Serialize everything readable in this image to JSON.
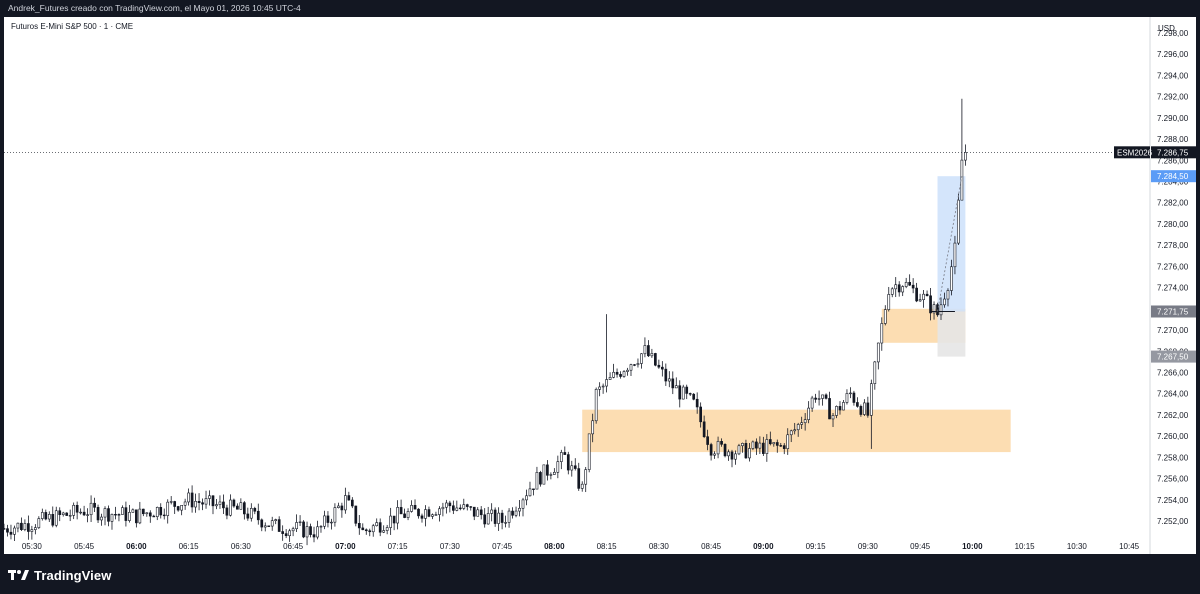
{
  "header": {
    "caption": "Andrek_Futures creado con TradingView.com, el Mayo 01, 2026 10:45 UTC-4"
  },
  "footer": {
    "brand": "TradingView",
    "logo_icon": "tradingview-logo-icon"
  },
  "colors": {
    "background_outer": "#131722",
    "chart_background": "#ffffff",
    "candle": "#131722",
    "demand_zone": "#fbd7a5",
    "long_profit_zone": "#cfe2fb",
    "long_stop_zone": "#e6e6e6",
    "entry_label": "#787b86",
    "target_label": "#5b9cf6",
    "price_label": "#131722"
  },
  "chart_data": {
    "type": "candlestick",
    "title": "Futuros E-Mini S&P 500 · 1 · CME",
    "currency": "USD",
    "symbol_label": "ESM2026",
    "last_price": "7.286,75",
    "target_price_label": "7.284,50",
    "entry_price_label": "7.271,75",
    "stop_price_label": "7.267,50",
    "y_range": [
      7250.5,
      7299.5
    ],
    "y_ticks": [
      "7.252,00",
      "7.254,00",
      "7.256,00",
      "7.258,00",
      "7.260,00",
      "7.262,00",
      "7.264,00",
      "7.266,00",
      "7.268,00",
      "7.270,00",
      "7.272,00",
      "7.274,00",
      "7.276,00",
      "7.278,00",
      "7.280,00",
      "7.282,00",
      "7.284,00",
      "7.286,00",
      "7.288,00",
      "7.290,00",
      "7.292,00",
      "7.294,00",
      "7.296,00",
      "7.298,00"
    ],
    "x_range": [
      "05:22",
      "10:51"
    ],
    "x_ticks": [
      {
        "label": "05:30",
        "bold": false
      },
      {
        "label": "05:45",
        "bold": false
      },
      {
        "label": "06:00",
        "bold": true
      },
      {
        "label": "06:15",
        "bold": false
      },
      {
        "label": "06:30",
        "bold": false
      },
      {
        "label": "06:45",
        "bold": false
      },
      {
        "label": "07:00",
        "bold": true
      },
      {
        "label": "07:15",
        "bold": false
      },
      {
        "label": "07:30",
        "bold": false
      },
      {
        "label": "07:45",
        "bold": false
      },
      {
        "label": "08:00",
        "bold": true
      },
      {
        "label": "08:15",
        "bold": false
      },
      {
        "label": "08:30",
        "bold": false
      },
      {
        "label": "08:45",
        "bold": false
      },
      {
        "label": "09:00",
        "bold": true
      },
      {
        "label": "09:15",
        "bold": false
      },
      {
        "label": "09:30",
        "bold": false
      },
      {
        "label": "09:45",
        "bold": false
      },
      {
        "label": "10:00",
        "bold": true
      },
      {
        "label": "10:15",
        "bold": false
      },
      {
        "label": "10:30",
        "bold": false
      },
      {
        "label": "10:45",
        "bold": false
      }
    ],
    "zones": [
      {
        "type": "demand",
        "from": "08:08",
        "to": "10:11",
        "low": 7258.5,
        "high": 7262.5
      },
      {
        "type": "demand",
        "from": "09:34",
        "to": "09:58",
        "low": 7268.8,
        "high": 7272.0
      },
      {
        "type": "long-position-target",
        "from": "09:50",
        "to": "09:58",
        "low": 7271.75,
        "high": 7284.5
      },
      {
        "type": "long-position-stop",
        "from": "09:50",
        "to": "09:58",
        "low": 7267.5,
        "high": 7271.75
      }
    ],
    "last_price_line": 7286.75,
    "anchor_points": [
      {
        "t": "05:22",
        "p": 7251.3
      },
      {
        "t": "05:30",
        "p": 7251.8
      },
      {
        "t": "05:45",
        "p": 7253.0
      },
      {
        "t": "06:00",
        "p": 7252.5
      },
      {
        "t": "06:15",
        "p": 7254.0
      },
      {
        "t": "06:30",
        "p": 7253.0
      },
      {
        "t": "06:40",
        "p": 7251.5
      },
      {
        "t": "06:52",
        "p": 7251.0
      },
      {
        "t": "07:00",
        "p": 7254.0
      },
      {
        "t": "07:05",
        "p": 7251.0
      },
      {
        "t": "07:15",
        "p": 7252.5
      },
      {
        "t": "07:30",
        "p": 7253.5
      },
      {
        "t": "07:45",
        "p": 7252.0
      },
      {
        "t": "07:55",
        "p": 7256.0
      },
      {
        "t": "08:03",
        "p": 7258.0
      },
      {
        "t": "08:08",
        "p": 7255.0
      },
      {
        "t": "08:12",
        "p": 7264.0
      },
      {
        "t": "08:20",
        "p": 7266.5
      },
      {
        "t": "08:26",
        "p": 7268.0
      },
      {
        "t": "08:33",
        "p": 7265.0
      },
      {
        "t": "08:40",
        "p": 7263.0
      },
      {
        "t": "08:45",
        "p": 7259.0
      },
      {
        "t": "08:53",
        "p": 7258.5
      },
      {
        "t": "09:00",
        "p": 7259.0
      },
      {
        "t": "09:05",
        "p": 7259.0
      },
      {
        "t": "09:10",
        "p": 7261.0
      },
      {
        "t": "09:15",
        "p": 7264.0
      },
      {
        "t": "09:20",
        "p": 7262.0
      },
      {
        "t": "09:25",
        "p": 7264.0
      },
      {
        "t": "09:30",
        "p": 7262.0
      },
      {
        "t": "09:33",
        "p": 7268.5
      },
      {
        "t": "09:36",
        "p": 7274.0
      },
      {
        "t": "09:40",
        "p": 7274.5
      },
      {
        "t": "09:46",
        "p": 7273.0
      },
      {
        "t": "09:50",
        "p": 7271.5
      },
      {
        "t": "09:53",
        "p": 7274.5
      },
      {
        "t": "09:55",
        "p": 7277.5
      },
      {
        "t": "09:57",
        "p": 7286.0
      },
      {
        "t": "09:58",
        "p": 7286.75
      }
    ],
    "spikes": [
      {
        "t": "08:15",
        "high": 7271.5
      },
      {
        "t": "09:31",
        "low": 7258.8
      },
      {
        "t": "09:57",
        "high": 7291.8
      }
    ]
  }
}
